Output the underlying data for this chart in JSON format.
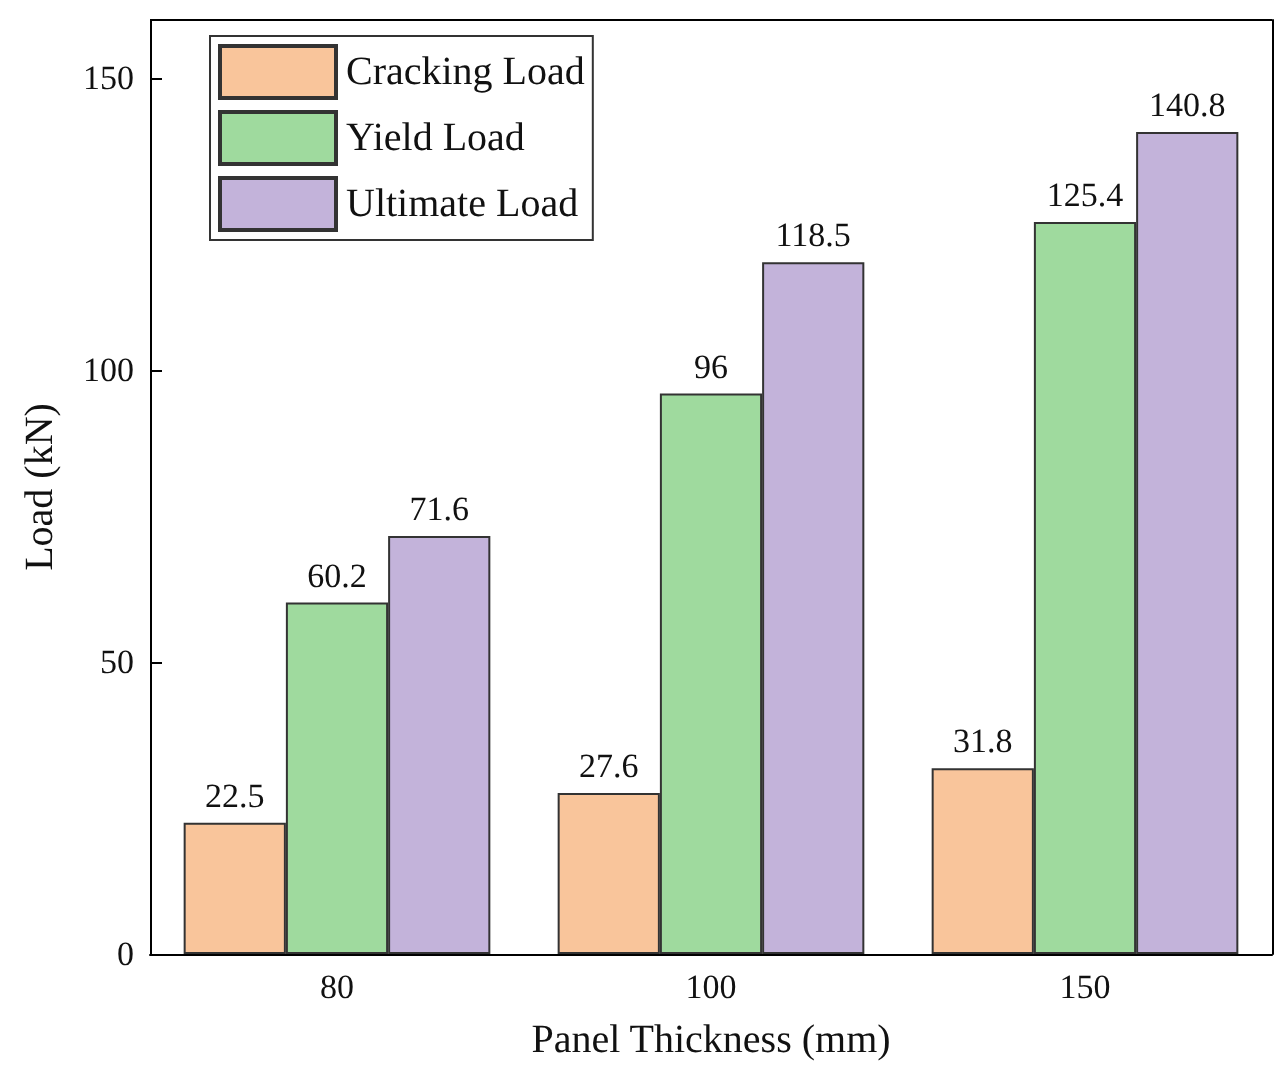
{
  "chart_data": {
    "type": "bar",
    "xlabel": "Panel Thickness (mm)",
    "ylabel": "Load (kN)",
    "categories": [
      "80",
      "100",
      "150"
    ],
    "series": [
      {
        "name": "Cracking Load",
        "color": "#f9c59b",
        "values": [
          22.5,
          27.6,
          31.8
        ]
      },
      {
        "name": "Yield Load",
        "color": "#9fda9e",
        "values": [
          60.2,
          96,
          125.4
        ]
      },
      {
        "name": "Ultimate Load",
        "color": "#c3b3da",
        "values": [
          71.6,
          118.5,
          140.8
        ]
      }
    ],
    "ylim": [
      0,
      160
    ],
    "yticks": [
      0,
      50,
      100,
      150
    ],
    "data_labels": true,
    "legend": "top left",
    "grid": false
  }
}
